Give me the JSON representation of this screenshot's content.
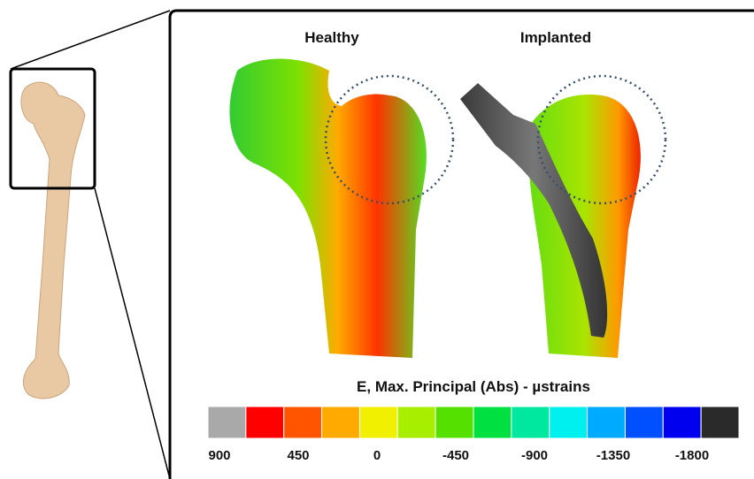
{
  "panels": [
    {
      "label": "Healthy"
    },
    {
      "label": "Implanted"
    }
  ],
  "legend": {
    "title": "E, Max. Principal (Abs) - µstrains",
    "colors": [
      "#a9a9a9",
      "#ff0000",
      "#ff5500",
      "#ffaa00",
      "#f0f000",
      "#a8ee00",
      "#55e000",
      "#00e040",
      "#00e8a0",
      "#00f0f0",
      "#00aaff",
      "#0050ff",
      "#0000ee",
      "#2a2a2a"
    ],
    "ticks": [
      900,
      450,
      0,
      -450,
      -900,
      -1350,
      -1800
    ]
  }
}
